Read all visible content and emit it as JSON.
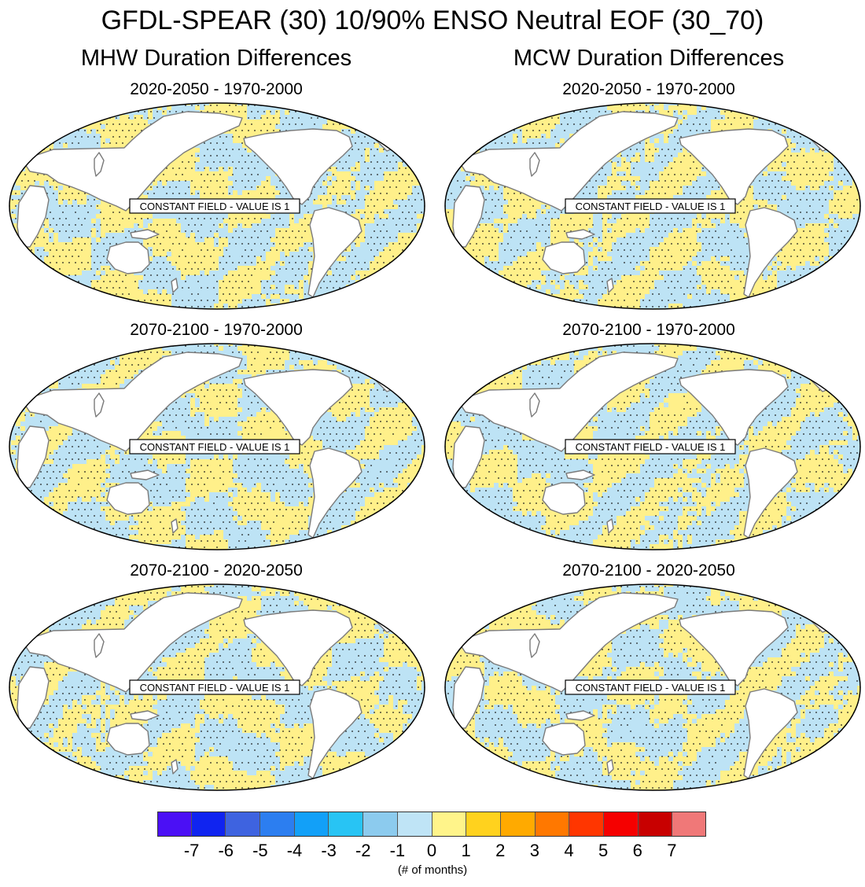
{
  "title": "GFDL-SPEAR (30) 10/90% ENSO Neutral EOF (30_70)",
  "columns": [
    {
      "heading": "MHW Duration Differences"
    },
    {
      "heading": "MCW Duration Differences"
    }
  ],
  "panels": [
    {
      "title": "2020-2050 - 1970-2000",
      "note": "CONSTANT FIELD - VALUE IS 1"
    },
    {
      "title": "2020-2050 - 1970-2000",
      "note": "CONSTANT FIELD - VALUE IS 1"
    },
    {
      "title": "2070-2100 - 1970-2000",
      "note": "CONSTANT FIELD - VALUE IS 1"
    },
    {
      "title": "2070-2100 - 1970-2000",
      "note": "CONSTANT FIELD - VALUE IS 1"
    },
    {
      "title": "2070-2100 - 2020-2050",
      "note": "CONSTANT FIELD - VALUE IS 1"
    },
    {
      "title": "2070-2100 - 2020-2050",
      "note": "CONSTANT FIELD - VALUE IS 1"
    }
  ],
  "colorbar": {
    "colors": [
      "#4b10f5",
      "#1024f0",
      "#3e63e0",
      "#2c7ef0",
      "#12a0f8",
      "#28c4f4",
      "#8ccbee",
      "#bfe4f6",
      "#fff48a",
      "#ffd21e",
      "#ffaa00",
      "#ff7800",
      "#ff3600",
      "#f50000",
      "#c80000",
      "#f07878"
    ],
    "ticks": [
      "-7",
      "-6",
      "-5",
      "-4",
      "-3",
      "-2",
      "-1",
      "0",
      "1",
      "2",
      "3",
      "4",
      "5",
      "6",
      "7"
    ],
    "units": "(# of months)"
  },
  "colors": {
    "ocean_pos": "#fff08a",
    "ocean_neg": "#bde3f5",
    "land": "#ffffff",
    "coast": "#7a7a7a",
    "stipple": "#1a1a1a"
  }
}
